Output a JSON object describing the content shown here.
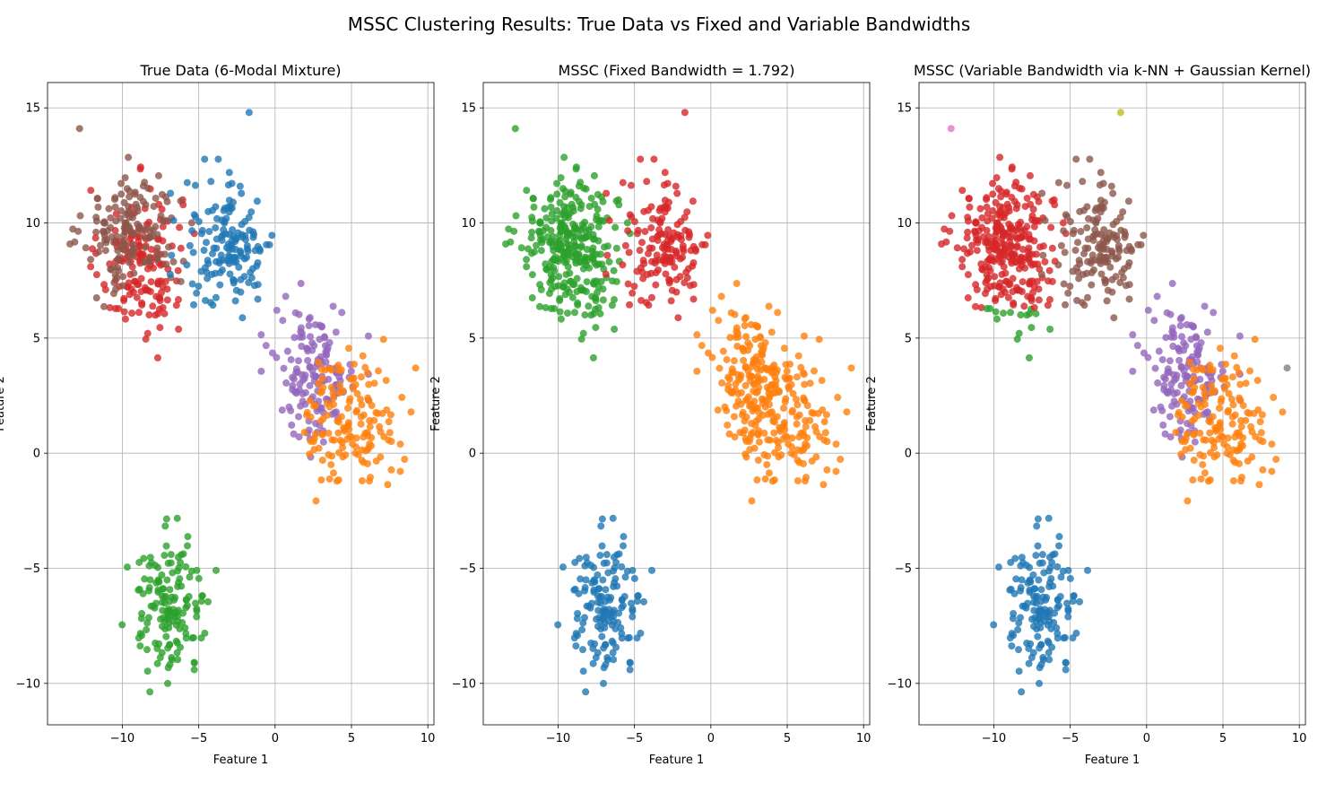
{
  "figure": {
    "title": "MSSC Clustering Results: True Data vs Fixed and Variable Bandwidths"
  },
  "palette": {
    "c0": "#1f77b4",
    "c1": "#ff7f0e",
    "c2": "#2ca02c",
    "c3": "#d62728",
    "c4": "#9467bd",
    "c5": "#8c564b",
    "c6": "#e377c2",
    "c7": "#7f7f7f",
    "c8": "#bcbd22"
  },
  "chart_data": [
    {
      "type": "scatter",
      "title": "True Data (6-Modal Mixture)",
      "xlabel": "Feature 1",
      "ylabel": "Feature 2",
      "xlim": [
        -14.9,
        10.4
      ],
      "ylim": [
        -11.8,
        16.1
      ],
      "xticks": [
        -10,
        -5,
        0,
        5,
        10
      ],
      "yticks": [
        -10,
        -5,
        0,
        5,
        10,
        15
      ],
      "grid": true,
      "mapping": {
        "A": "c3",
        "B": "c5",
        "C": "c0",
        "D": "c4",
        "E": "c1",
        "F": "c2"
      },
      "outliers": [
        {
          "x": -12.8,
          "y": 14.1,
          "color": "c5"
        },
        {
          "x": -1.7,
          "y": 14.8,
          "color": "c0"
        },
        {
          "x": 9.2,
          "y": 3.7,
          "color": "c1"
        }
      ]
    },
    {
      "type": "scatter",
      "title": "MSSC (Fixed Bandwidth = 1.792)",
      "xlabel": "Feature 1",
      "ylabel": "Feature 2",
      "xlim": [
        -14.9,
        10.4
      ],
      "ylim": [
        -11.8,
        16.1
      ],
      "xticks": [
        -10,
        -5,
        0,
        5,
        10
      ],
      "yticks": [
        -10,
        -5,
        0,
        5,
        10,
        15
      ],
      "grid": true,
      "mapping": {
        "A": "c2",
        "B": "c2",
        "C": "c3",
        "D": "c1",
        "E": "c1",
        "F": "c0"
      },
      "outliers": [
        {
          "x": -12.8,
          "y": 14.1,
          "color": "c2"
        },
        {
          "x": -1.7,
          "y": 14.8,
          "color": "c3"
        },
        {
          "x": 9.2,
          "y": 3.7,
          "color": "c1"
        }
      ]
    },
    {
      "type": "scatter",
      "title": "MSSC (Variable Bandwidth via k-NN + Gaussian Kernel)",
      "xlabel": "Feature 1",
      "ylabel": "Feature 2",
      "xlim": [
        -14.9,
        10.4
      ],
      "ylim": [
        -11.8,
        16.1
      ],
      "xticks": [
        -10,
        -5,
        0,
        5,
        10
      ],
      "yticks": [
        -10,
        -5,
        0,
        5,
        10,
        15
      ],
      "grid": true,
      "mapping": {
        "A": "c3",
        "B": "c3",
        "C": "c5",
        "D": "c4",
        "E": "c1",
        "F": "c0"
      },
      "special_lower_A": "c2",
      "outliers": [
        {
          "x": -12.8,
          "y": 14.1,
          "color": "c6"
        },
        {
          "x": -1.7,
          "y": 14.8,
          "color": "c8"
        },
        {
          "x": 9.2,
          "y": 3.7,
          "color": "c7"
        }
      ]
    }
  ],
  "clusters": [
    {
      "id": "A",
      "center": [
        -8.8,
        8.3
      ],
      "spread": [
        1.35,
        1.6
      ],
      "n": 150
    },
    {
      "id": "B",
      "center": [
        -9.4,
        9.6
      ],
      "spread": [
        1.55,
        1.25
      ],
      "n": 150
    },
    {
      "id": "C",
      "center": [
        -3.0,
        9.0
      ],
      "spread": [
        1.5,
        1.45
      ],
      "n": 150
    },
    {
      "id": "D",
      "center": [
        2.6,
        3.6
      ],
      "spread": [
        1.35,
        1.45
      ],
      "n": 150
    },
    {
      "id": "E",
      "center": [
        5.0,
        1.4
      ],
      "spread": [
        1.5,
        1.4
      ],
      "n": 150
    },
    {
      "id": "F",
      "center": [
        -6.9,
        -6.6
      ],
      "spread": [
        1.35,
        1.45
      ],
      "n": 150
    }
  ]
}
